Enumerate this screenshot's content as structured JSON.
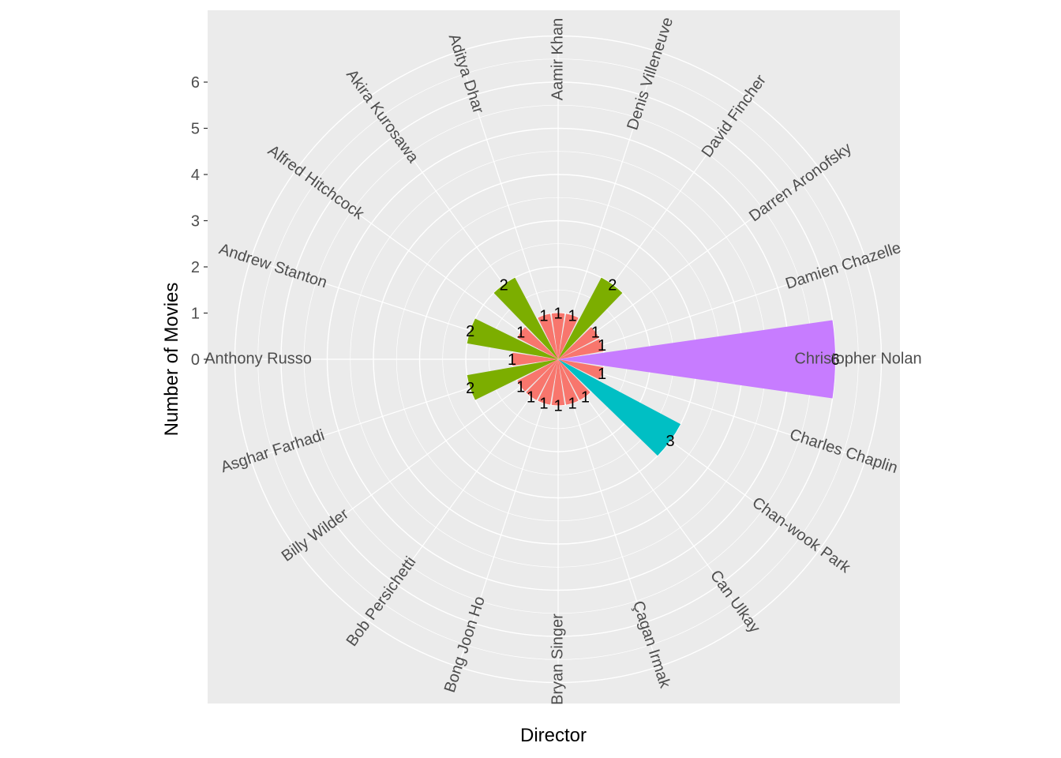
{
  "chart_data": {
    "type": "bar",
    "coord": "polar",
    "xlabel": "Director",
    "ylabel": "Number of Movies",
    "y_ticks": [
      0,
      1,
      2,
      3,
      4,
      5,
      6
    ],
    "categories": [
      "Aamir Khan",
      "Aditya Dhar",
      "Akira Kurosawa",
      "Alfred Hitchcock",
      "Andrew Stanton",
      "Anthony Russo",
      "Asghar Farhadi",
      "Billy Wilder",
      "Bob Persichetti",
      "Bong Joon Ho",
      "Bryan Singer",
      "Çagan Irmak",
      "Can Ulkay",
      "Chan-wook Park",
      "Charles Chaplin",
      "Christopher Nolan",
      "Damien Chazelle",
      "Darren Aronofsky",
      "David Fincher",
      "Denis Villeneuve"
    ],
    "values": [
      1,
      1,
      2,
      1,
      2,
      1,
      2,
      1,
      1,
      1,
      1,
      1,
      1,
      3,
      1,
      6,
      1,
      1,
      2,
      1
    ],
    "fill_by_value": {
      "1": "#F8766D",
      "2": "#7CAE00",
      "3": "#00BFC4",
      "6": "#C77CFF"
    },
    "panel_background": "#EBEBEB",
    "grid_color": "#FFFFFF",
    "legend": "none"
  }
}
